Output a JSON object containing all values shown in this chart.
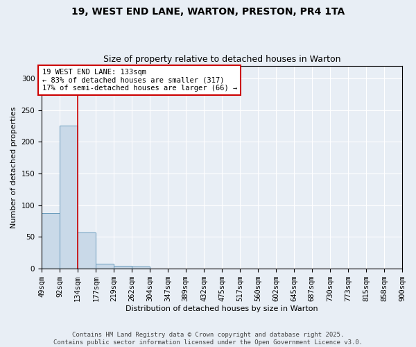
{
  "title_line1": "19, WEST END LANE, WARTON, PRESTON, PR4 1TA",
  "title_line2": "Size of property relative to detached houses in Warton",
  "xlabel": "Distribution of detached houses by size in Warton",
  "ylabel": "Number of detached properties",
  "footer_line1": "Contains HM Land Registry data © Crown copyright and database right 2025.",
  "footer_line2": "Contains public sector information licensed under the Open Government Licence v3.0.",
  "annotation_line1": "19 WEST END LANE: 133sqm",
  "annotation_line2": "← 83% of detached houses are smaller (317)",
  "annotation_line3": "17% of semi-detached houses are larger (66) →",
  "bins": [
    49,
    92,
    134,
    177,
    219,
    262,
    304,
    347,
    389,
    432,
    475,
    517,
    560,
    602,
    645,
    687,
    730,
    773,
    815,
    858,
    900
  ],
  "bar_heights": [
    88,
    226,
    57,
    8,
    5,
    3,
    0,
    0,
    0,
    0,
    0,
    0,
    0,
    0,
    0,
    0,
    0,
    0,
    0,
    0
  ],
  "bar_color": "#c9d9e8",
  "bar_edge_color": "#6699bb",
  "red_line_x": 134,
  "ylim": [
    0,
    320
  ],
  "yticks": [
    0,
    50,
    100,
    150,
    200,
    250,
    300
  ],
  "background_color": "#e8eef5",
  "annotation_box_color": "#ffffff",
  "annotation_box_edge": "#cc0000",
  "red_line_color": "#cc0000",
  "grid_color": "#ffffff",
  "title_fontsize": 10,
  "subtitle_fontsize": 9,
  "axis_label_fontsize": 8,
  "tick_fontsize": 7.5,
  "annotation_fontsize": 7.5,
  "footer_fontsize": 6.5
}
